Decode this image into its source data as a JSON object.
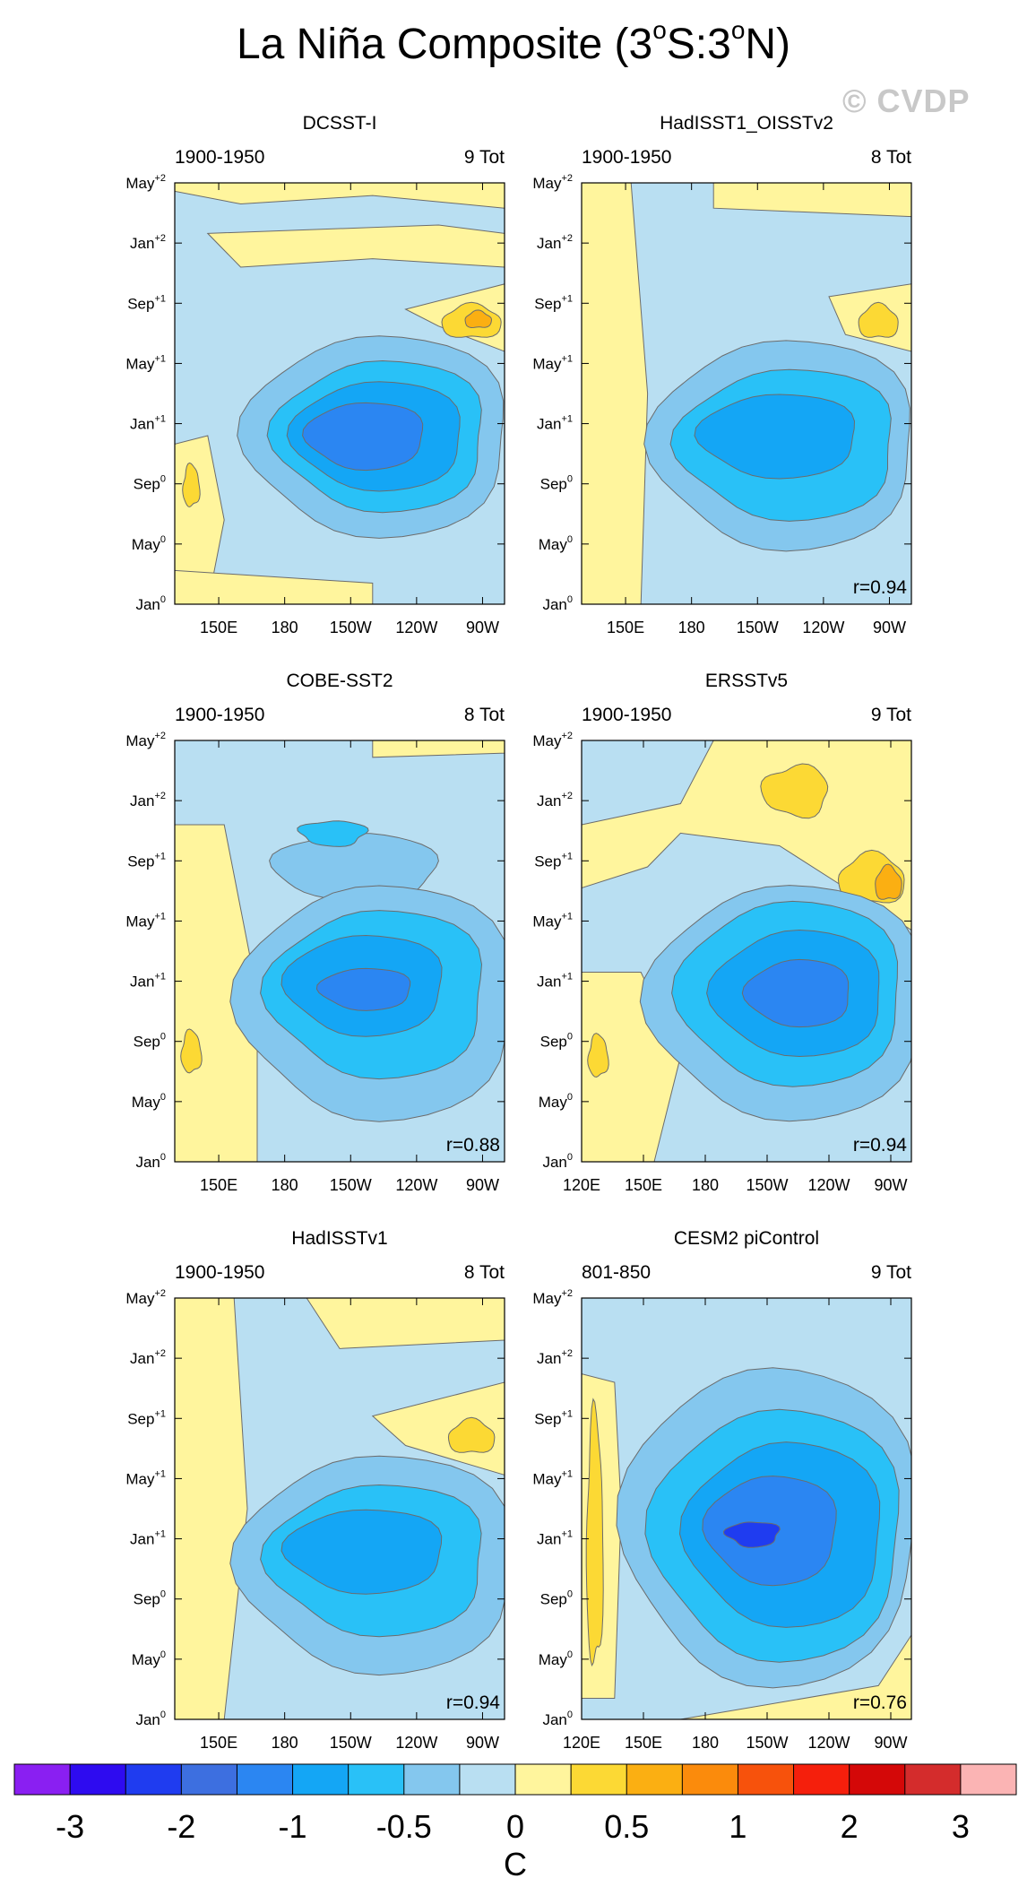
{
  "figure": {
    "title_main": "La Niña Composite (3",
    "title_deg": "o",
    "title_lat1": "S:3",
    "title_lat2": "N)",
    "watermark": "© CVDP",
    "colorbar_unit": "C",
    "colorbar_colors": [
      "#8a1ff2",
      "#2e0bf0",
      "#1f3cf0",
      "#3d6fe0",
      "#2b86f2",
      "#14a6f5",
      "#29c1f7",
      "#84c7ee",
      "#b9dff2",
      "#fff59d",
      "#fcd934",
      "#fbaf12",
      "#fb8b0c",
      "#f7520c",
      "#f51f0c",
      "#d40808",
      "#d42c2c",
      "#fbb4b4"
    ],
    "colorbar_ticks": [
      {
        "label": "-3",
        "index": 1
      },
      {
        "label": "-2",
        "index": 3
      },
      {
        "label": "-1",
        "index": 5
      },
      {
        "label": "-0.5",
        "index": 7
      },
      {
        "label": "0",
        "index": 9
      },
      {
        "label": "0.5",
        "index": 11
      },
      {
        "label": "1",
        "index": 13
      },
      {
        "label": "2",
        "index": 15
      },
      {
        "label": "3",
        "index": 17
      }
    ]
  },
  "chart_data": [
    {
      "type": "heatmap",
      "title": "DCSST-I",
      "period": "1900-1950",
      "count": "9 Tot",
      "corr": "",
      "xticks": [
        "150E",
        "180",
        "150W",
        "120W",
        "90W"
      ],
      "yticks": [
        {
          "m": "Jan",
          "s": "0"
        },
        {
          "m": "May",
          "s": "0"
        },
        {
          "m": "Sep",
          "s": "0"
        },
        {
          "m": "Jan",
          "s": "+1"
        },
        {
          "m": "May",
          "s": "+1"
        },
        {
          "m": "Sep",
          "s": "+1"
        },
        {
          "m": "Jan",
          "s": "+2"
        },
        {
          "m": "May",
          "s": "+2"
        }
      ]
    },
    {
      "type": "heatmap",
      "title": "HadISST1_OISSTv2",
      "period": "1900-1950",
      "count": "8 Tot",
      "corr": "r=0.94",
      "xticks": [
        "150E",
        "180",
        "150W",
        "120W",
        "90W"
      ],
      "yticks": [
        {
          "m": "Jan",
          "s": "0"
        },
        {
          "m": "May",
          "s": "0"
        },
        {
          "m": "Sep",
          "s": "0"
        },
        {
          "m": "Jan",
          "s": "+1"
        },
        {
          "m": "May",
          "s": "+1"
        },
        {
          "m": "Sep",
          "s": "+1"
        },
        {
          "m": "Jan",
          "s": "+2"
        },
        {
          "m": "May",
          "s": "+2"
        }
      ]
    },
    {
      "type": "heatmap",
      "title": "COBE-SST2",
      "period": "1900-1950",
      "count": "8 Tot",
      "corr": "r=0.88",
      "xticks": [
        "150E",
        "180",
        "150W",
        "120W",
        "90W"
      ],
      "yticks": [
        {
          "m": "Jan",
          "s": "0"
        },
        {
          "m": "May",
          "s": "0"
        },
        {
          "m": "Sep",
          "s": "0"
        },
        {
          "m": "Jan",
          "s": "+1"
        },
        {
          "m": "May",
          "s": "+1"
        },
        {
          "m": "Sep",
          "s": "+1"
        },
        {
          "m": "Jan",
          "s": "+2"
        },
        {
          "m": "May",
          "s": "+2"
        }
      ]
    },
    {
      "type": "heatmap",
      "title": "ERSSTv5",
      "period": "1900-1950",
      "count": "9 Tot",
      "corr": "r=0.94",
      "xticks": [
        "120E",
        "150E",
        "180",
        "150W",
        "120W",
        "90W"
      ],
      "yticks": [
        {
          "m": "Jan",
          "s": "0"
        },
        {
          "m": "May",
          "s": "0"
        },
        {
          "m": "Sep",
          "s": "0"
        },
        {
          "m": "Jan",
          "s": "+1"
        },
        {
          "m": "May",
          "s": "+1"
        },
        {
          "m": "Sep",
          "s": "+1"
        },
        {
          "m": "Jan",
          "s": "+2"
        },
        {
          "m": "May",
          "s": "+2"
        }
      ]
    },
    {
      "type": "heatmap",
      "title": "HadISSTv1",
      "period": "1900-1950",
      "count": "8 Tot",
      "corr": "r=0.94",
      "xticks": [
        "150E",
        "180",
        "150W",
        "120W",
        "90W"
      ],
      "yticks": [
        {
          "m": "Jan",
          "s": "0"
        },
        {
          "m": "May",
          "s": "0"
        },
        {
          "m": "Sep",
          "s": "0"
        },
        {
          "m": "Jan",
          "s": "+1"
        },
        {
          "m": "May",
          "s": "+1"
        },
        {
          "m": "Sep",
          "s": "+1"
        },
        {
          "m": "Jan",
          "s": "+2"
        },
        {
          "m": "May",
          "s": "+2"
        }
      ]
    },
    {
      "type": "heatmap",
      "title": "CESM2 piControl",
      "period": "801-850",
      "count": "9 Tot",
      "corr": "r=0.76",
      "xticks": [
        "120E",
        "150E",
        "180",
        "150W",
        "120W",
        "90W"
      ],
      "yticks": [
        {
          "m": "Jan",
          "s": "0"
        },
        {
          "m": "May",
          "s": "0"
        },
        {
          "m": "Sep",
          "s": "0"
        },
        {
          "m": "Jan",
          "s": "+1"
        },
        {
          "m": "May",
          "s": "+1"
        },
        {
          "m": "Sep",
          "s": "+1"
        },
        {
          "m": "Jan",
          "s": "+2"
        },
        {
          "m": "May",
          "s": "+2"
        }
      ]
    }
  ]
}
